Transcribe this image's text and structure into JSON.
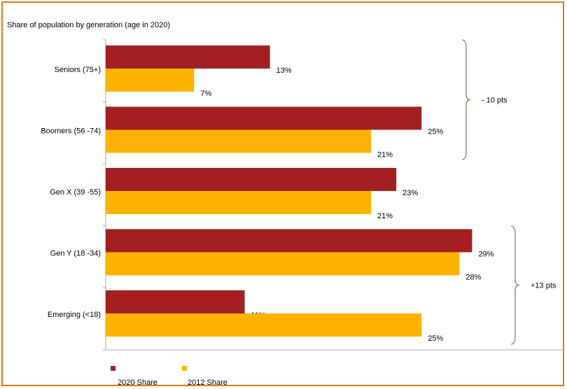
{
  "chart_data": {
    "type": "bar",
    "orientation": "horizontal",
    "title": "Share of population by generation (age in 2020)",
    "categories": [
      "Seniors (75+)",
      "Boomers (56 -74)",
      "Gen X (39 -55)",
      "Gen Y (18 -34)",
      "Emerging (<18)"
    ],
    "series": [
      {
        "name": "2020 Share",
        "color": "#A31F22",
        "values": [
          13,
          25,
          23,
          29,
          11
        ]
      },
      {
        "name": "2012 Share",
        "color": "#FFB300",
        "values": [
          7,
          21,
          21,
          28,
          25
        ]
      }
    ],
    "data_labels": [
      [
        "13%",
        "25%",
        "23%",
        "29%",
        "11%"
      ],
      [
        "7%",
        "21%",
        "21%",
        "28%",
        "25%"
      ]
    ],
    "xlim": [
      0,
      30
    ],
    "grid": false,
    "legend_position": "bottom-left",
    "annotations": [
      {
        "text": "- 10 pts",
        "spans": [
          0,
          1
        ]
      },
      {
        "text": "+13 pts",
        "spans": [
          3,
          4
        ]
      }
    ]
  }
}
